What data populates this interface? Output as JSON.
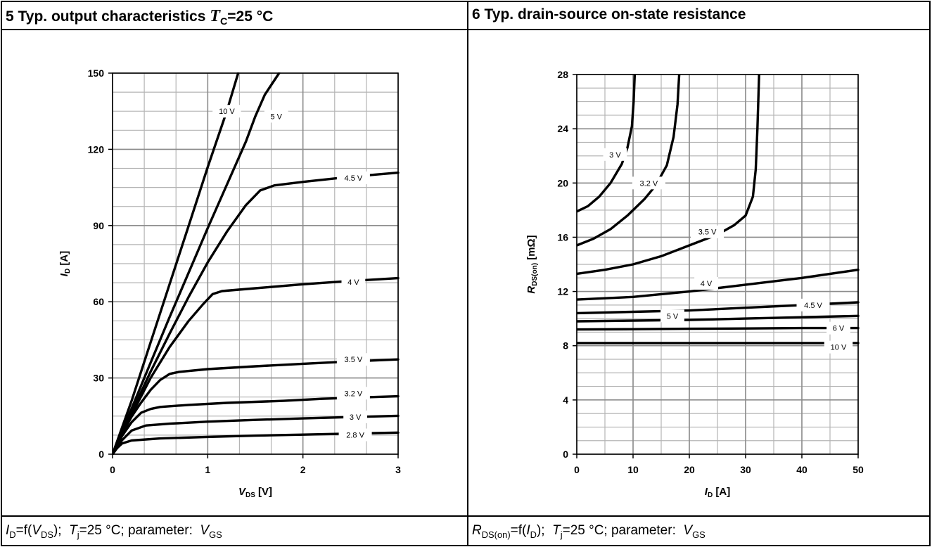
{
  "headers": {
    "left": {
      "number": "5",
      "text": "Typ. output characteristics",
      "symbol": "T",
      "symbol_sub": "C",
      "condition": "=25 °C"
    },
    "right": {
      "number": "6",
      "text": "Typ. drain-source on-state resistance"
    }
  },
  "captions": {
    "left": {
      "p1": "I",
      "p1_sub": "D",
      "p2": "=f(",
      "p3": "V",
      "p3_sub": "DS",
      "p4": "); ",
      "p5": "T",
      "p5_sub": "j",
      "p6": "=25 °C; parameter: ",
      "p7": "V",
      "p7_sub": "GS"
    },
    "right": {
      "p1": "R",
      "p1_sub": "DS(on)",
      "p2": "=f(",
      "p3": "I",
      "p3_sub": "D",
      "p4": "); ",
      "p5": "T",
      "p5_sub": "j",
      "p6": "=25 °C; parameter: ",
      "p7": "V",
      "p7_sub": "GS"
    }
  },
  "colors": {
    "curve": "#000000",
    "grid": "#b4b4b4",
    "major_grid": "#8c8c8c",
    "border": "#000000"
  },
  "chart_data": [
    {
      "type": "line",
      "title": "Typ. output characteristics",
      "xlabel": "V",
      "xlabel_sub": "DS",
      "xlabel_unit": " [V]",
      "ylabel": "I",
      "ylabel_sub": "D",
      "ylabel_unit": " [A]",
      "xlim": [
        0,
        3
      ],
      "ylim": [
        0,
        150
      ],
      "xticks": [
        0,
        1,
        2,
        3
      ],
      "yticks": [
        0,
        30,
        60,
        90,
        120,
        150
      ],
      "grid": true,
      "series": [
        {
          "name": "2.8 V",
          "points": [
            [
              0,
              0
            ],
            [
              0.05,
              2.5
            ],
            [
              0.1,
              4.2
            ],
            [
              0.2,
              5.4
            ],
            [
              0.5,
              6.2
            ],
            [
              1,
              6.8
            ],
            [
              1.5,
              7.3
            ],
            [
              2,
              7.7
            ],
            [
              2.5,
              8.1
            ],
            [
              3,
              8.5
            ]
          ],
          "label_at": [
            2.55,
            7.6
          ]
        },
        {
          "name": "3 V",
          "points": [
            [
              0,
              0
            ],
            [
              0.1,
              5.5
            ],
            [
              0.2,
              9.3
            ],
            [
              0.35,
              11.3
            ],
            [
              0.6,
              12.0
            ],
            [
              1,
              12.8
            ],
            [
              1.5,
              13.5
            ],
            [
              2,
              14.1
            ],
            [
              2.5,
              14.6
            ],
            [
              3,
              15.1
            ]
          ],
          "label_at": [
            2.55,
            14.7
          ]
        },
        {
          "name": "3.2 V",
          "points": [
            [
              0,
              0
            ],
            [
              0.1,
              7.2
            ],
            [
              0.2,
              12.6
            ],
            [
              0.3,
              16.3
            ],
            [
              0.4,
              17.8
            ],
            [
              0.5,
              18.6
            ],
            [
              0.8,
              19.4
            ],
            [
              1.2,
              20.2
            ],
            [
              1.8,
              21.0
            ],
            [
              2.2,
              21.8
            ],
            [
              2.5,
              22.2
            ],
            [
              3,
              22.8
            ]
          ],
          "label_at": [
            2.53,
            24.0
          ]
        },
        {
          "name": "3.5 V",
          "points": [
            [
              0,
              0
            ],
            [
              0.1,
              8.0
            ],
            [
              0.2,
              14.8
            ],
            [
              0.3,
              20.3
            ],
            [
              0.4,
              25.3
            ],
            [
              0.5,
              29.2
            ],
            [
              0.6,
              31.6
            ],
            [
              0.7,
              32.4
            ],
            [
              1,
              33.5
            ],
            [
              1.5,
              34.6
            ],
            [
              2,
              35.6
            ],
            [
              2.5,
              36.5
            ],
            [
              3,
              37.3
            ]
          ],
          "label_at": [
            2.53,
            37.3
          ]
        },
        {
          "name": "4 V",
          "points": [
            [
              0,
              0
            ],
            [
              0.2,
              15.5
            ],
            [
              0.4,
              30.0
            ],
            [
              0.6,
              42.2
            ],
            [
              0.8,
              52.5
            ],
            [
              0.95,
              59.0
            ],
            [
              1.05,
              63.0
            ],
            [
              1.15,
              64.2
            ],
            [
              1.5,
              65.3
            ],
            [
              2,
              66.9
            ],
            [
              2.5,
              68.2
            ],
            [
              3,
              69.3
            ]
          ],
          "label_at": [
            2.53,
            67.8
          ]
        },
        {
          "name": "4.5 V",
          "points": [
            [
              0,
              0
            ],
            [
              0.2,
              16.5
            ],
            [
              0.4,
              32.5
            ],
            [
              0.6,
              47.5
            ],
            [
              0.8,
              62.0
            ],
            [
              1,
              75.5
            ],
            [
              1.2,
              87.5
            ],
            [
              1.4,
              98.0
            ],
            [
              1.55,
              103.8
            ],
            [
              1.7,
              105.8
            ],
            [
              2,
              107.2
            ],
            [
              2.5,
              109.2
            ],
            [
              3,
              110.8
            ]
          ],
          "label_at": [
            2.53,
            108.8
          ]
        },
        {
          "name": "5 V",
          "points": [
            [
              0,
              0
            ],
            [
              0.2,
              18.0
            ],
            [
              0.4,
              36.0
            ],
            [
              0.6,
              54.0
            ],
            [
              0.8,
              71.5
            ],
            [
              1,
              89.0
            ],
            [
              1.2,
              106.0
            ],
            [
              1.4,
              123.0
            ],
            [
              1.5,
              133.0
            ],
            [
              1.6,
              141.5
            ],
            [
              1.75,
              150.0
            ]
          ],
          "label_at": [
            1.72,
            133.0
          ]
        },
        {
          "name": "10 V",
          "points": [
            [
              0,
              0
            ],
            [
              0.2,
              21.0
            ],
            [
              0.4,
              44.0
            ],
            [
              0.6,
              67.0
            ],
            [
              0.8,
              90.0
            ],
            [
              1,
              113.0
            ],
            [
              1.2,
              135.0
            ],
            [
              1.32,
              150.0
            ]
          ],
          "label_at": [
            1.2,
            135.0
          ]
        }
      ]
    },
    {
      "type": "line",
      "title": "Typ. drain-source on-state resistance",
      "xlabel": "I",
      "xlabel_sub": "D",
      "xlabel_unit": " [A]",
      "ylabel": "R",
      "ylabel_sub": "DS(on)",
      "ylabel_unit": "  [mΩ]",
      "xlim": [
        0,
        50
      ],
      "ylim": [
        0,
        28
      ],
      "xticks": [
        0,
        10,
        20,
        30,
        40,
        50
      ],
      "yticks": [
        0,
        4,
        8,
        12,
        16,
        20,
        24,
        28
      ],
      "grid": true,
      "series": [
        {
          "name": "3 V",
          "points": [
            [
              0,
              17.9
            ],
            [
              2,
              18.3
            ],
            [
              4,
              19.0
            ],
            [
              6,
              20.0
            ],
            [
              8,
              21.4
            ],
            [
              9,
              22.6
            ],
            [
              9.8,
              24.2
            ],
            [
              10.1,
              26.0
            ],
            [
              10.3,
              28.0
            ]
          ],
          "label_at": [
            6.8,
            22.1
          ]
        },
        {
          "name": "3.2 V",
          "points": [
            [
              0,
              15.4
            ],
            [
              3,
              15.9
            ],
            [
              6,
              16.6
            ],
            [
              9,
              17.6
            ],
            [
              12,
              18.8
            ],
            [
              14,
              19.8
            ],
            [
              16,
              21.3
            ],
            [
              17.2,
              23.4
            ],
            [
              17.9,
              25.8
            ],
            [
              18.2,
              28.0
            ]
          ],
          "label_at": [
            12.8,
            20.0
          ]
        },
        {
          "name": "3.5 V",
          "points": [
            [
              0,
              13.3
            ],
            [
              5,
              13.6
            ],
            [
              10,
              14.0
            ],
            [
              15,
              14.6
            ],
            [
              20,
              15.4
            ],
            [
              25,
              16.2
            ],
            [
              28,
              16.9
            ],
            [
              30,
              17.6
            ],
            [
              31.3,
              19.0
            ],
            [
              31.8,
              21.0
            ],
            [
              32.1,
              24.0
            ],
            [
              32.4,
              28.0
            ]
          ],
          "label_at": [
            23.2,
            16.4
          ]
        },
        {
          "name": "4 V",
          "points": [
            [
              0,
              11.4
            ],
            [
              10,
              11.6
            ],
            [
              20,
              12.0
            ],
            [
              30,
              12.5
            ],
            [
              40,
              13.0
            ],
            [
              50,
              13.6
            ]
          ],
          "label_at": [
            23.0,
            12.6
          ]
        },
        {
          "name": "4.5 V",
          "points": [
            [
              0,
              10.4
            ],
            [
              10,
              10.5
            ],
            [
              20,
              10.6
            ],
            [
              30,
              10.8
            ],
            [
              40,
              11.0
            ],
            [
              50,
              11.2
            ]
          ],
          "label_at": [
            42.0,
            11.0
          ]
        },
        {
          "name": "5 V",
          "points": [
            [
              0,
              9.8
            ],
            [
              10,
              9.85
            ],
            [
              20,
              9.9
            ],
            [
              30,
              10.0
            ],
            [
              40,
              10.1
            ],
            [
              50,
              10.2
            ]
          ],
          "label_at": [
            17.0,
            10.2
          ]
        },
        {
          "name": "6 V",
          "points": [
            [
              0,
              9.2
            ],
            [
              10,
              9.22
            ],
            [
              20,
              9.25
            ],
            [
              30,
              9.27
            ],
            [
              40,
              9.3
            ],
            [
              50,
              9.3
            ]
          ],
          "label_at": [
            46.5,
            9.3
          ]
        },
        {
          "name": "10 V",
          "points": [
            [
              0,
              8.2
            ],
            [
              10,
              8.2
            ],
            [
              20,
              8.2
            ],
            [
              30,
              8.2
            ],
            [
              40,
              8.2
            ],
            [
              50,
              8.2
            ]
          ],
          "label_at": [
            46.5,
            7.9
          ]
        }
      ]
    }
  ]
}
